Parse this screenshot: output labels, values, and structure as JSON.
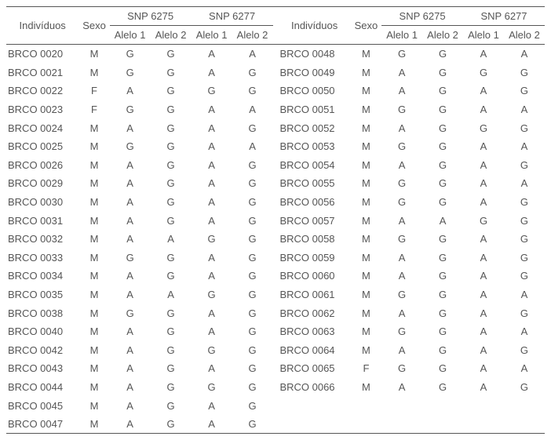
{
  "headers": {
    "individuos": "Indivíduos",
    "sexo": "Sexo",
    "snp6275": "SNP 6275",
    "snp6277": "SNP 6277",
    "alelo1": "Alelo 1",
    "alelo2": "Alelo 2"
  },
  "left": [
    {
      "id": "BRCO 0020",
      "sex": "M",
      "a1": "G",
      "a2": "G",
      "b1": "A",
      "b2": "A"
    },
    {
      "id": "BRCO 0021",
      "sex": "M",
      "a1": "G",
      "a2": "G",
      "b1": "A",
      "b2": "G"
    },
    {
      "id": "BRCO 0022",
      "sex": "F",
      "a1": "A",
      "a2": "G",
      "b1": "G",
      "b2": "G"
    },
    {
      "id": "BRCO 0023",
      "sex": "F",
      "a1": "G",
      "a2": "G",
      "b1": "A",
      "b2": "A"
    },
    {
      "id": "BRCO 0024",
      "sex": "M",
      "a1": "A",
      "a2": "G",
      "b1": "A",
      "b2": "G"
    },
    {
      "id": "BRCO 0025",
      "sex": "M",
      "a1": "G",
      "a2": "G",
      "b1": "A",
      "b2": "A"
    },
    {
      "id": "BRCO 0026",
      "sex": "M",
      "a1": "A",
      "a2": "G",
      "b1": "A",
      "b2": "G"
    },
    {
      "id": "BRCO 0029",
      "sex": "M",
      "a1": "A",
      "a2": "G",
      "b1": "A",
      "b2": "G"
    },
    {
      "id": "BRCO 0030",
      "sex": "M",
      "a1": "A",
      "a2": "G",
      "b1": "A",
      "b2": "G"
    },
    {
      "id": "BRCO 0031",
      "sex": "M",
      "a1": "A",
      "a2": "G",
      "b1": "A",
      "b2": "G"
    },
    {
      "id": "BRCO 0032",
      "sex": "M",
      "a1": "A",
      "a2": "A",
      "b1": "G",
      "b2": "G"
    },
    {
      "id": "BRCO 0033",
      "sex": "M",
      "a1": "G",
      "a2": "G",
      "b1": "A",
      "b2": "G"
    },
    {
      "id": "BRCO 0034",
      "sex": "M",
      "a1": "A",
      "a2": "G",
      "b1": "A",
      "b2": "G"
    },
    {
      "id": "BRCO 0035",
      "sex": "M",
      "a1": "A",
      "a2": "A",
      "b1": "G",
      "b2": "G"
    },
    {
      "id": "BRCO 0038",
      "sex": "M",
      "a1": "G",
      "a2": "G",
      "b1": "A",
      "b2": "G"
    },
    {
      "id": "BRCO 0040",
      "sex": "M",
      "a1": "A",
      "a2": "G",
      "b1": "A",
      "b2": "G"
    },
    {
      "id": "BRCO 0042",
      "sex": "M",
      "a1": "A",
      "a2": "G",
      "b1": "G",
      "b2": "G"
    },
    {
      "id": "BRCO 0043",
      "sex": "M",
      "a1": "A",
      "a2": "G",
      "b1": "A",
      "b2": "G"
    },
    {
      "id": "BRCO 0044",
      "sex": "M",
      "a1": "A",
      "a2": "G",
      "b1": "G",
      "b2": "G"
    },
    {
      "id": "BRCO 0045",
      "sex": "M",
      "a1": "A",
      "a2": "G",
      "b1": "A",
      "b2": "G"
    },
    {
      "id": "BRCO 0047",
      "sex": "M",
      "a1": "A",
      "a2": "G",
      "b1": "A",
      "b2": "G"
    }
  ],
  "right": [
    {
      "id": "BRCO 0048",
      "sex": "M",
      "a1": "G",
      "a2": "G",
      "b1": "A",
      "b2": "A"
    },
    {
      "id": "BRCO 0049",
      "sex": "M",
      "a1": "A",
      "a2": "G",
      "b1": "G",
      "b2": "G"
    },
    {
      "id": "BRCO 0050",
      "sex": "M",
      "a1": "A",
      "a2": "G",
      "b1": "A",
      "b2": "G"
    },
    {
      "id": "BRCO 0051",
      "sex": "M",
      "a1": "G",
      "a2": "G",
      "b1": "A",
      "b2": "A"
    },
    {
      "id": "BRCO 0052",
      "sex": "M",
      "a1": "A",
      "a2": "G",
      "b1": "G",
      "b2": "G"
    },
    {
      "id": "BRCO 0053",
      "sex": "M",
      "a1": "G",
      "a2": "G",
      "b1": "A",
      "b2": "A"
    },
    {
      "id": "BRCO 0054",
      "sex": "M",
      "a1": "A",
      "a2": "G",
      "b1": "A",
      "b2": "G"
    },
    {
      "id": "BRCO 0055",
      "sex": "M",
      "a1": "G",
      "a2": "G",
      "b1": "A",
      "b2": "A"
    },
    {
      "id": "BRCO 0056",
      "sex": "M",
      "a1": "G",
      "a2": "G",
      "b1": "A",
      "b2": "G"
    },
    {
      "id": "BRCO 0057",
      "sex": "M",
      "a1": "A",
      "a2": "A",
      "b1": "G",
      "b2": "G"
    },
    {
      "id": "BRCO 0058",
      "sex": "M",
      "a1": "G",
      "a2": "G",
      "b1": "A",
      "b2": "G"
    },
    {
      "id": "BRCO 0059",
      "sex": "M",
      "a1": "A",
      "a2": "G",
      "b1": "A",
      "b2": "G"
    },
    {
      "id": "BRCO 0060",
      "sex": "M",
      "a1": "A",
      "a2": "G",
      "b1": "A",
      "b2": "G"
    },
    {
      "id": "BRCO 0061",
      "sex": "M",
      "a1": "G",
      "a2": "G",
      "b1": "A",
      "b2": "A"
    },
    {
      "id": "BRCO 0062",
      "sex": "M",
      "a1": "A",
      "a2": "G",
      "b1": "A",
      "b2": "G"
    },
    {
      "id": "BRCO 0063",
      "sex": "M",
      "a1": "G",
      "a2": "G",
      "b1": "A",
      "b2": "A"
    },
    {
      "id": "BRCO 0064",
      "sex": "M",
      "a1": "A",
      "a2": "G",
      "b1": "A",
      "b2": "G"
    },
    {
      "id": "BRCO 0065",
      "sex": "F",
      "a1": "G",
      "a2": "G",
      "b1": "A",
      "b2": "A"
    },
    {
      "id": "BRCO 0066",
      "sex": "M",
      "a1": "A",
      "a2": "G",
      "b1": "A",
      "b2": "G"
    }
  ],
  "style": {
    "text_color": "#555555",
    "background_color": "#ffffff",
    "font_size": 13,
    "border_color": "#555555"
  }
}
